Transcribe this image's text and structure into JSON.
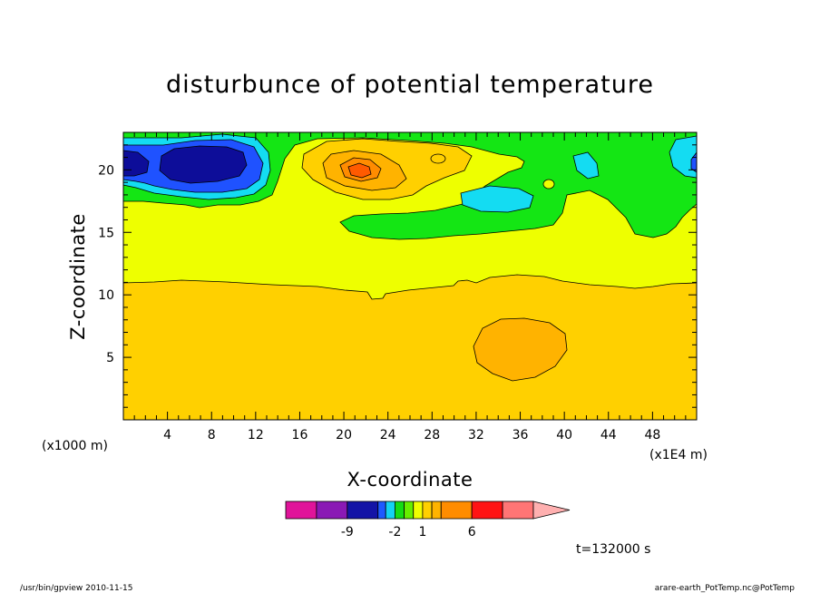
{
  "chart_data": {
    "type": "heatmap",
    "title": "disturbunce of potential temperature",
    "xlabel": "X-coordinate",
    "ylabel": "Z-coordinate",
    "x_unit_label": "(x1000 m)",
    "x_extra_unit_label": "(x1E4 m)",
    "xlim": [
      0,
      52
    ],
    "ylim": [
      0,
      23
    ],
    "x_major_ticks": [
      4,
      8,
      12,
      16,
      20,
      24,
      28,
      32,
      36,
      40,
      44,
      48
    ],
    "x_minor_step": 1,
    "y_major_ticks": [
      5,
      10,
      15,
      20
    ],
    "y_minor_step": 1,
    "time_label": "t=132000 s",
    "footer_left": "/usr/bin/gpview   2010-11-15",
    "footer_right": "arare-earth_PotTemp.nc@PotTemp",
    "colorbar": {
      "colors": [
        "#e0149a",
        "#8a19b5",
        "#1414a6",
        "#1e5aff",
        "#14d2f2",
        "#14dc14",
        "#66ee00",
        "#f0ff00",
        "#ffd000",
        "#ffb300",
        "#ff8c00",
        "#ff1414",
        "#ff7575",
        "#ffb0b0"
      ],
      "tick_labels": [
        {
          "text": "-9",
          "after_box": 1
        },
        {
          "text": "-2",
          "after_box": 4
        },
        {
          "text": "1",
          "after_box": 7
        },
        {
          "text": "6",
          "after_box": 10
        }
      ]
    },
    "fill_colors": {
      "dark_blue": "#0d0d99",
      "blue": "#1f52ff",
      "cyan": "#14dcf2",
      "green": "#14e614",
      "yellow": "#eeff00",
      "gold": "#ffd000",
      "light_orange": "#ffb300",
      "orange": "#ff8c00",
      "dark_orange": "#ff5a00"
    }
  }
}
